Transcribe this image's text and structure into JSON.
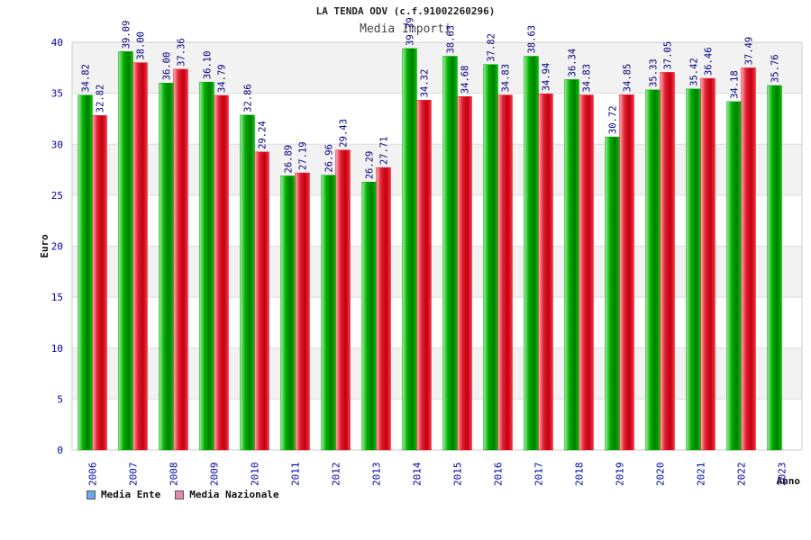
{
  "colors": {
    "ente": "#00a000",
    "nazionale": "#e01828",
    "legend_ente": "#6fa8e8",
    "legend_nazionale": "#e08ab0",
    "axis_text": "#0000aa",
    "value_text": "#000080"
  },
  "chart_data": {
    "type": "bar",
    "title": "LA TENDA ODV (c.f.91002260296)",
    "subtitle": "Media Importi",
    "xlabel": "Anno",
    "ylabel": "Euro",
    "ylim": [
      0,
      40
    ],
    "yticks": [
      0,
      5,
      10,
      15,
      20,
      25,
      30,
      35,
      40
    ],
    "grid": true,
    "legend_position": "bottom-left",
    "categories": [
      "2006",
      "2007",
      "2008",
      "2009",
      "2010",
      "2011",
      "2012",
      "2013",
      "2014",
      "2015",
      "2016",
      "2017",
      "2018",
      "2019",
      "2020",
      "2021",
      "2022",
      "2023"
    ],
    "series": [
      {
        "name": "Media Ente",
        "values": [
          34.82,
          39.09,
          36.0,
          36.1,
          32.86,
          26.89,
          26.96,
          26.29,
          39.39,
          38.63,
          37.82,
          38.63,
          36.34,
          30.72,
          35.33,
          35.42,
          34.18,
          35.76
        ],
        "labels": [
          "34.82",
          "39.09",
          "36.00",
          "36.10",
          "32.86",
          "26.89",
          "26.96",
          "26.29",
          "39.39",
          "38.63",
          "37.82",
          "38.63",
          "36.34",
          "30.72",
          "35.33",
          "35.42",
          "34.18",
          "35.76"
        ]
      },
      {
        "name": "Media Nazionale",
        "values": [
          32.82,
          38.0,
          37.36,
          34.79,
          29.24,
          27.19,
          29.43,
          27.71,
          34.32,
          34.68,
          34.83,
          34.94,
          34.83,
          34.85,
          37.05,
          36.46,
          37.49,
          null
        ],
        "labels": [
          "32.82",
          "38.00",
          "37.36",
          "34.79",
          "29.24",
          "27.19",
          "29.43",
          "27.71",
          "34.32",
          "34.68",
          "34.83",
          "34.94",
          "34.83",
          "34.85",
          "37.05",
          "36.46",
          "37.49",
          ""
        ]
      }
    ]
  }
}
